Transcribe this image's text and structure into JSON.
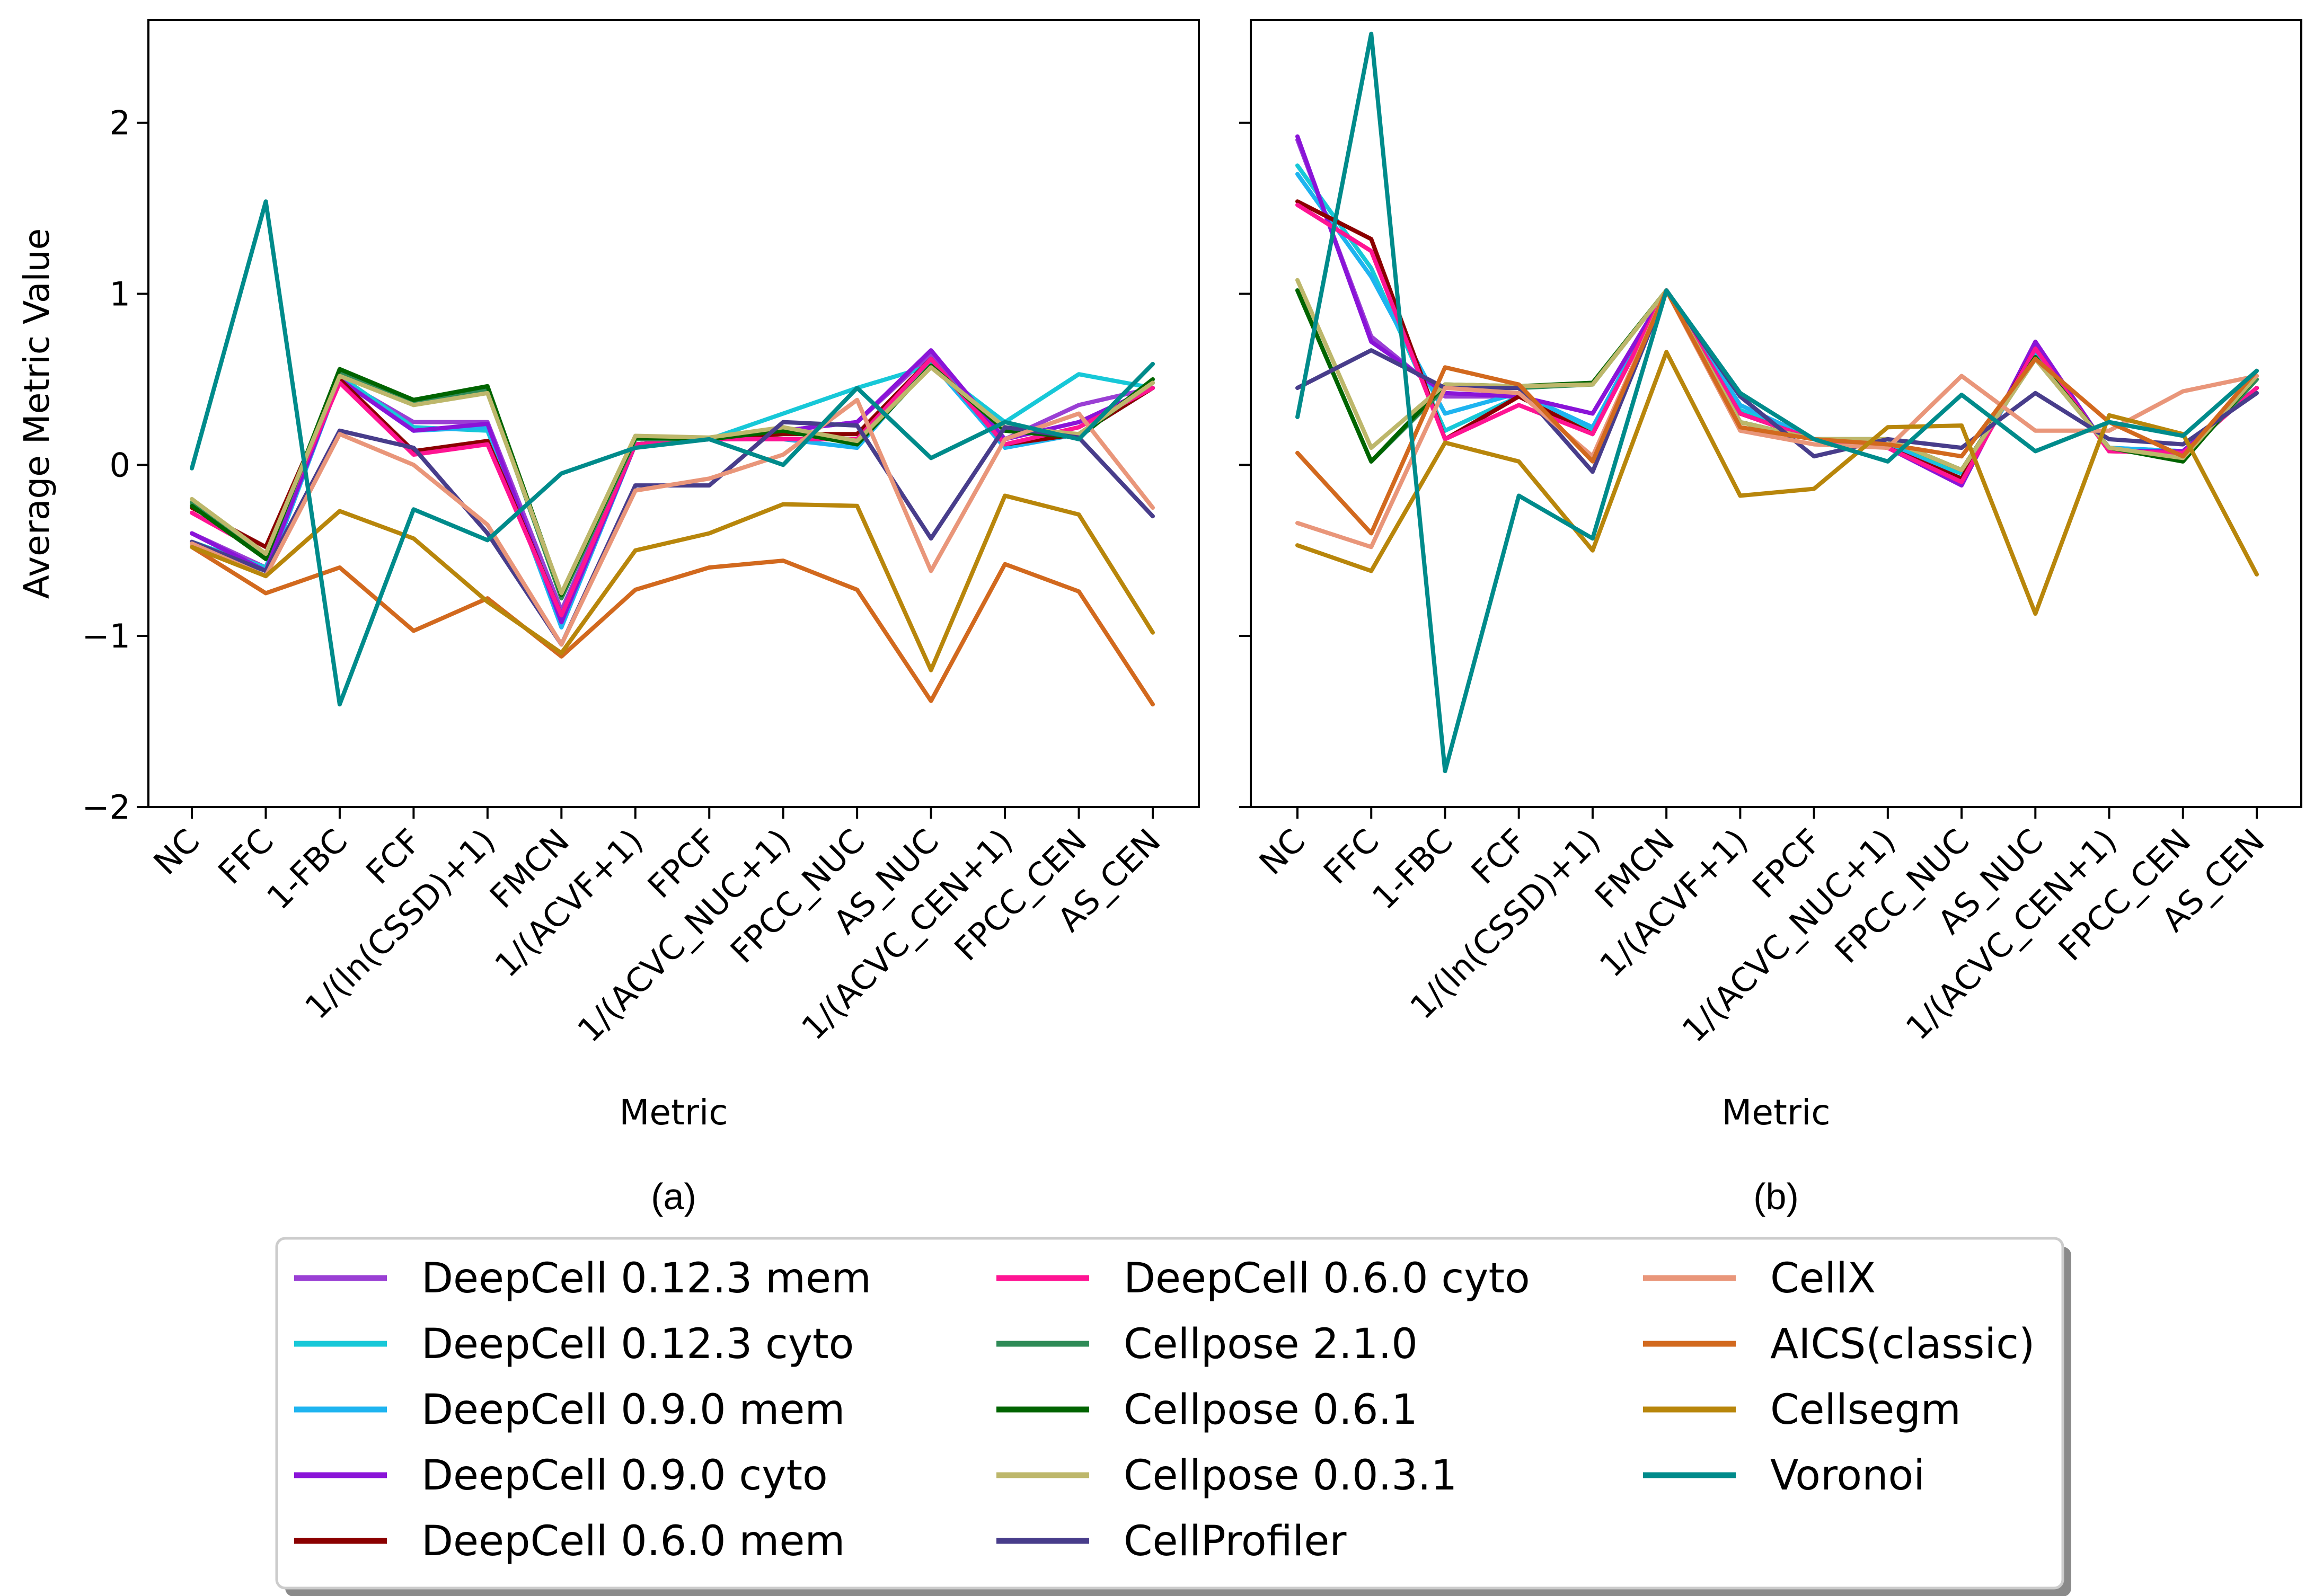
{
  "chart_data": [
    {
      "type": "line",
      "panel_label": "(a)",
      "xlabel": "Metric",
      "ylabel": "Average Metric Value",
      "ylim": [
        -2,
        2.6
      ],
      "yticks": [
        -2,
        -1,
        0,
        1,
        2
      ],
      "ytick_labels": [
        "−2",
        "−1",
        "0",
        "1",
        "2"
      ],
      "categories": [
        "NC",
        "FFC",
        "1-FBC",
        "FCF",
        "1/(ln(CSSD)+1)",
        "FMCN",
        "1/(ACVF+1)",
        "FPCF",
        "1/(ACVC_NUC+1)",
        "FPCC_NUC",
        "AS_NUC",
        "1/(ACVC_CEN+1)",
        "FPCC_CEN",
        "AS_CEN"
      ],
      "series": [
        {
          "name": "DeepCell 0.12.3 mem",
          "values": [
            -0.4,
            -0.6,
            0.5,
            0.25,
            0.25,
            -0.85,
            0.12,
            0.15,
            0.2,
            0.25,
            0.65,
            0.15,
            0.35,
            0.45
          ]
        },
        {
          "name": "DeepCell 0.12.3 cyto",
          "values": [
            -0.45,
            -0.6,
            0.52,
            0.22,
            0.2,
            -0.9,
            0.12,
            0.15,
            0.3,
            0.45,
            0.58,
            0.25,
            0.53,
            0.45
          ]
        },
        {
          "name": "DeepCell 0.9.0 mem",
          "values": [
            -0.45,
            -0.65,
            0.5,
            0.2,
            0.22,
            -0.95,
            0.12,
            0.15,
            0.15,
            0.1,
            0.6,
            0.1,
            0.18,
            0.45
          ]
        },
        {
          "name": "DeepCell 0.9.0 cyto",
          "values": [
            -0.4,
            -0.62,
            0.5,
            0.2,
            0.24,
            -0.92,
            0.12,
            0.15,
            0.2,
            0.25,
            0.67,
            0.15,
            0.25,
            0.45
          ]
        },
        {
          "name": "DeepCell 0.6.0 mem",
          "values": [
            -0.25,
            -0.48,
            0.5,
            0.08,
            0.14,
            -0.88,
            0.12,
            0.15,
            0.18,
            0.18,
            0.62,
            0.12,
            0.18,
            0.45
          ]
        },
        {
          "name": "DeepCell 0.6.0 cyto",
          "values": [
            -0.28,
            -0.52,
            0.48,
            0.06,
            0.12,
            -0.88,
            0.12,
            0.15,
            0.15,
            0.15,
            0.62,
            0.12,
            0.22,
            0.45
          ]
        },
        {
          "name": "Cellpose 2.1.0",
          "values": [
            -0.22,
            -0.55,
            0.54,
            0.36,
            0.44,
            -0.78,
            0.15,
            0.15,
            0.22,
            0.12,
            0.58,
            0.2,
            0.18,
            0.48
          ]
        },
        {
          "name": "Cellpose 0.6.1",
          "values": [
            -0.24,
            -0.55,
            0.56,
            0.38,
            0.46,
            -0.76,
            0.16,
            0.15,
            0.2,
            0.12,
            0.58,
            0.2,
            0.16,
            0.5
          ]
        },
        {
          "name": "Cellpose 0.0.3.1",
          "values": [
            -0.2,
            -0.52,
            0.52,
            0.35,
            0.42,
            -0.75,
            0.17,
            0.16,
            0.22,
            0.14,
            0.57,
            0.22,
            0.18,
            0.48
          ]
        },
        {
          "name": "CellProfiler",
          "values": [
            -0.45,
            -0.62,
            0.2,
            0.1,
            -0.4,
            -1.05,
            -0.12,
            -0.12,
            0.25,
            0.23,
            -0.43,
            0.22,
            0.16,
            -0.3
          ]
        },
        {
          "name": "CellX",
          "values": [
            -0.46,
            -0.65,
            0.18,
            0.0,
            -0.35,
            -1.05,
            -0.15,
            -0.08,
            0.06,
            0.38,
            -0.62,
            0.15,
            0.3,
            -0.25
          ]
        },
        {
          "name": "AICS(classic)",
          "values": [
            -0.48,
            -0.75,
            -0.6,
            -0.97,
            -0.78,
            -1.12,
            -0.73,
            -0.6,
            -0.56,
            -0.73,
            -1.38,
            -0.58,
            -0.74,
            -1.4
          ]
        },
        {
          "name": "Cellsegm",
          "values": [
            -0.48,
            -0.65,
            -0.27,
            -0.43,
            -0.8,
            -1.1,
            -0.5,
            -0.4,
            -0.23,
            -0.24,
            -1.2,
            -0.18,
            -0.29,
            -0.98
          ]
        },
        {
          "name": "Voronoi",
          "values": [
            -0.02,
            1.54,
            -1.4,
            -0.26,
            -0.44,
            -0.05,
            0.1,
            0.15,
            0.0,
            0.45,
            0.04,
            0.25,
            0.15,
            0.59
          ]
        }
      ]
    },
    {
      "type": "line",
      "panel_label": "(b)",
      "xlabel": "Metric",
      "ylabel": "",
      "ylim": [
        -2,
        2.6
      ],
      "yticks": [
        -2,
        -1,
        0,
        1,
        2
      ],
      "ytick_labels": [
        "",
        "",
        "",
        "",
        ""
      ],
      "categories": [
        "NC",
        "FFC",
        "1-FBC",
        "FCF",
        "1/(ln(CSSD)+1)",
        "FMCN",
        "1/(ACVF+1)",
        "FPCF",
        "1/(ACVC_NUC+1)",
        "FPCC_NUC",
        "AS_NUC",
        "1/(ACVC_CEN+1)",
        "FPCC_CEN",
        "AS_CEN"
      ],
      "series": [
        {
          "name": "DeepCell 0.12.3 mem",
          "values": [
            1.9,
            0.75,
            0.4,
            0.4,
            0.3,
            1.02,
            0.3,
            0.15,
            0.1,
            -0.1,
            0.7,
            0.08,
            0.08,
            0.45
          ]
        },
        {
          "name": "DeepCell 0.12.3 cyto",
          "values": [
            1.75,
            1.15,
            0.2,
            0.4,
            0.2,
            1.02,
            0.32,
            0.15,
            0.12,
            -0.05,
            0.65,
            0.1,
            0.08,
            0.45
          ]
        },
        {
          "name": "DeepCell 0.9.0 mem",
          "values": [
            1.7,
            1.1,
            0.3,
            0.42,
            0.22,
            1.02,
            0.35,
            0.15,
            0.12,
            -0.08,
            0.65,
            0.1,
            0.08,
            0.45
          ]
        },
        {
          "name": "DeepCell 0.9.0 cyto",
          "values": [
            1.92,
            0.72,
            0.42,
            0.4,
            0.3,
            1.02,
            0.3,
            0.15,
            0.1,
            -0.12,
            0.72,
            0.08,
            0.08,
            0.45
          ]
        },
        {
          "name": "DeepCell 0.6.0 mem",
          "values": [
            1.54,
            1.32,
            0.15,
            0.4,
            0.18,
            1.02,
            0.3,
            0.15,
            0.1,
            -0.08,
            0.68,
            0.08,
            0.07,
            0.45
          ]
        },
        {
          "name": "DeepCell 0.6.0 cyto",
          "values": [
            1.52,
            1.25,
            0.15,
            0.35,
            0.18,
            1.02,
            0.3,
            0.15,
            0.1,
            -0.1,
            0.68,
            0.08,
            0.07,
            0.45
          ]
        },
        {
          "name": "Cellpose 2.1.0",
          "values": [
            1.02,
            0.02,
            0.45,
            0.45,
            0.47,
            1.02,
            0.25,
            0.15,
            0.15,
            -0.03,
            0.62,
            0.1,
            0.03,
            0.5
          ]
        },
        {
          "name": "Cellpose 0.6.1",
          "values": [
            1.02,
            0.02,
            0.47,
            0.46,
            0.48,
            1.02,
            0.25,
            0.15,
            0.15,
            -0.03,
            0.63,
            0.1,
            0.02,
            0.52
          ]
        },
        {
          "name": "Cellpose 0.0.3.1",
          "values": [
            1.08,
            0.1,
            0.47,
            0.46,
            0.47,
            1.02,
            0.25,
            0.15,
            0.15,
            -0.03,
            0.62,
            0.1,
            0.04,
            0.52
          ]
        },
        {
          "name": "CellProfiler",
          "values": [
            0.45,
            0.67,
            0.45,
            0.45,
            -0.04,
            1.02,
            0.4,
            0.05,
            0.15,
            0.1,
            0.42,
            0.15,
            0.12,
            0.42
          ]
        },
        {
          "name": "CellX",
          "values": [
            -0.34,
            -0.48,
            0.45,
            0.42,
            0.05,
            1.02,
            0.2,
            0.12,
            0.1,
            0.52,
            0.2,
            0.2,
            0.43,
            0.52
          ]
        },
        {
          "name": "AICS(classic)",
          "values": [
            0.07,
            -0.4,
            0.57,
            0.47,
            0.02,
            1.02,
            0.22,
            0.15,
            0.12,
            0.05,
            0.62,
            0.25,
            0.05,
            0.55
          ]
        },
        {
          "name": "Cellsegm",
          "values": [
            -0.47,
            -0.62,
            0.13,
            0.02,
            -0.5,
            0.66,
            -0.18,
            -0.14,
            0.22,
            0.23,
            -0.87,
            0.29,
            0.18,
            -0.64
          ]
        },
        {
          "name": "Voronoi",
          "values": [
            0.28,
            2.52,
            -1.79,
            -0.18,
            -0.43,
            1.02,
            0.42,
            0.15,
            0.02,
            0.41,
            0.08,
            0.25,
            0.17,
            0.55
          ]
        }
      ]
    }
  ],
  "legend": {
    "placement": "bottom-center",
    "columns": 3,
    "entries": [
      {
        "label": "DeepCell 0.12.3 mem",
        "color": "#9a3fd4"
      },
      {
        "label": "DeepCell 0.12.3 cyto",
        "color": "#17c8d8"
      },
      {
        "label": "DeepCell 0.9.0 mem",
        "color": "#1eb4f0"
      },
      {
        "label": "DeepCell 0.9.0 cyto",
        "color": "#8a14d8"
      },
      {
        "label": "DeepCell 0.6.0 mem",
        "color": "#8b0000"
      },
      {
        "label": "DeepCell 0.6.0 cyto",
        "color": "#ff1493"
      },
      {
        "label": "Cellpose 2.1.0",
        "color": "#2e8b57"
      },
      {
        "label": "Cellpose 0.6.1",
        "color": "#006400"
      },
      {
        "label": "Cellpose 0.0.3.1",
        "color": "#bdb76b"
      },
      {
        "label": "CellProfiler",
        "color": "#483d8b"
      },
      {
        "label": "CellX",
        "color": "#e9967a"
      },
      {
        "label": "AICS(classic)",
        "color": "#d2691e"
      },
      {
        "label": "Cellsegm",
        "color": "#b8860b"
      },
      {
        "label": "Voronoi",
        "color": "#008b8b"
      }
    ]
  }
}
